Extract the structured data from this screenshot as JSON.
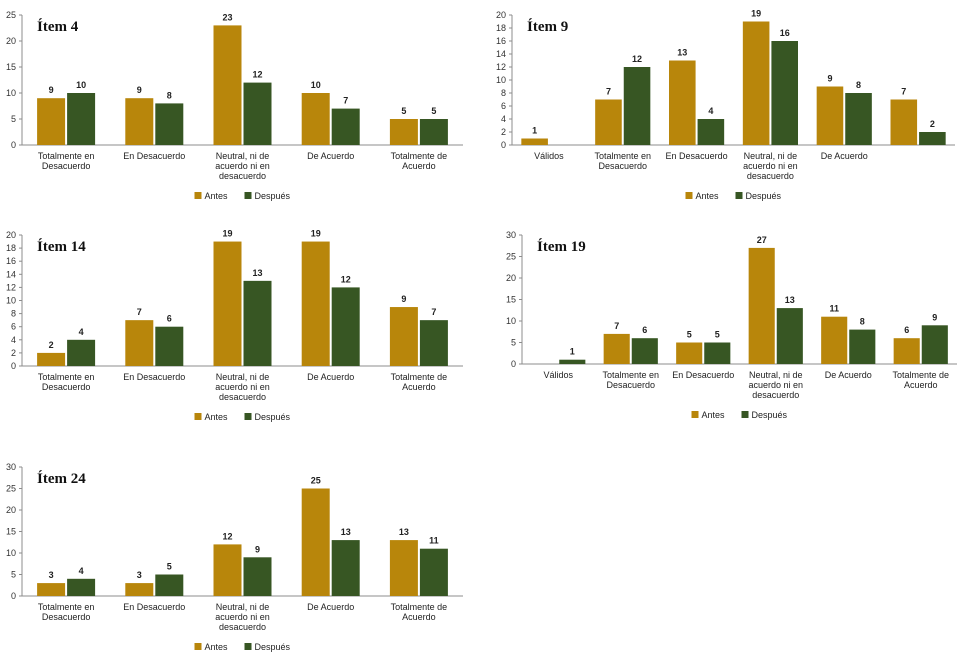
{
  "chart_data": [
    {
      "type": "bar",
      "title": "Ítem 4",
      "categories": [
        [
          "Totalmente en",
          "Desacuerdo"
        ],
        [
          "En Desacuerdo"
        ],
        [
          "Neutral, ni de",
          "acuerdo ni en",
          "desacuerdo"
        ],
        [
          "De Acuerdo"
        ],
        [
          "Totalmente de",
          "Acuerdo"
        ]
      ],
      "series": [
        {
          "name": "Antes",
          "values": [
            9,
            9,
            23,
            10,
            5
          ]
        },
        {
          "name": "Después",
          "values": [
            10,
            8,
            12,
            7,
            5
          ]
        }
      ],
      "ylim": [
        0,
        25
      ],
      "yticks": [
        0,
        5,
        10,
        15,
        20,
        25
      ],
      "xlabel": "",
      "ylabel": "",
      "legend_position": "bottom"
    },
    {
      "type": "bar",
      "title": "Ítem 9",
      "categories": [
        [
          "Válidos"
        ],
        [
          "Totalmente en",
          "Desacuerdo"
        ],
        [
          "En Desacuerdo"
        ],
        [
          "Neutral, ni de",
          "acuerdo ni en",
          "desacuerdo"
        ],
        [
          "De Acuerdo"
        ],
        [
          ""
        ]
      ],
      "series": [
        {
          "name": "Antes",
          "values": [
            1,
            7,
            13,
            19,
            9,
            7
          ]
        },
        {
          "name": "Después",
          "values": [
            null,
            12,
            4,
            16,
            8,
            2
          ]
        }
      ],
      "ylim": [
        0,
        20
      ],
      "yticks": [
        0,
        2,
        4,
        6,
        8,
        10,
        12,
        14,
        16,
        18,
        20
      ],
      "xlabel": "",
      "ylabel": "",
      "legend_position": "bottom"
    },
    {
      "type": "bar",
      "title": "Ítem 14",
      "categories": [
        [
          "Totalmente en",
          "Desacuerdo"
        ],
        [
          "En Desacuerdo"
        ],
        [
          "Neutral, ni de",
          "acuerdo ni en",
          "desacuerdo"
        ],
        [
          "De Acuerdo"
        ],
        [
          "Totalmente de",
          "Acuerdo"
        ]
      ],
      "series": [
        {
          "name": "Antes",
          "values": [
            2,
            7,
            19,
            19,
            9
          ]
        },
        {
          "name": "Después",
          "values": [
            4,
            6,
            13,
            12,
            7
          ]
        }
      ],
      "ylim": [
        0,
        20
      ],
      "yticks": [
        0,
        2,
        4,
        6,
        8,
        10,
        12,
        14,
        16,
        18,
        20
      ],
      "xlabel": "",
      "ylabel": "",
      "legend_position": "bottom"
    },
    {
      "type": "bar",
      "title": "Ítem 19",
      "categories": [
        [
          "Válidos"
        ],
        [
          "Totalmente en",
          "Desacuerdo"
        ],
        [
          "En Desacuerdo"
        ],
        [
          "Neutral, ni de",
          "acuerdo ni en",
          "desacuerdo"
        ],
        [
          "De Acuerdo"
        ],
        [
          "Totalmente de",
          "Acuerdo"
        ]
      ],
      "series": [
        {
          "name": "Antes",
          "values": [
            null,
            7,
            5,
            27,
            11,
            6
          ]
        },
        {
          "name": "Después",
          "values": [
            1,
            6,
            5,
            13,
            8,
            9
          ]
        }
      ],
      "ylim": [
        0,
        30
      ],
      "yticks": [
        0,
        5,
        10,
        15,
        20,
        25,
        30
      ],
      "xlabel": "",
      "ylabel": "",
      "legend_position": "bottom"
    },
    {
      "type": "bar",
      "title": "Ítem 24",
      "categories": [
        [
          "Totalmente en",
          "Desacuerdo"
        ],
        [
          "En Desacuerdo"
        ],
        [
          "Neutral, ni de",
          "acuerdo ni en",
          "desacuerdo"
        ],
        [
          "De Acuerdo"
        ],
        [
          "Totalmente de",
          "Acuerdo"
        ]
      ],
      "series": [
        {
          "name": "Antes",
          "values": [
            3,
            3,
            12,
            25,
            13
          ]
        },
        {
          "name": "Después",
          "values": [
            4,
            5,
            9,
            13,
            11
          ]
        }
      ],
      "ylim": [
        0,
        30
      ],
      "yticks": [
        0,
        5,
        10,
        15,
        20,
        25,
        30
      ],
      "xlabel": "",
      "ylabel": "",
      "legend_position": "bottom"
    }
  ],
  "colors": {
    "Antes": "#b8860b",
    "Después": "#375623",
    "axis": "#8c8c8c"
  }
}
